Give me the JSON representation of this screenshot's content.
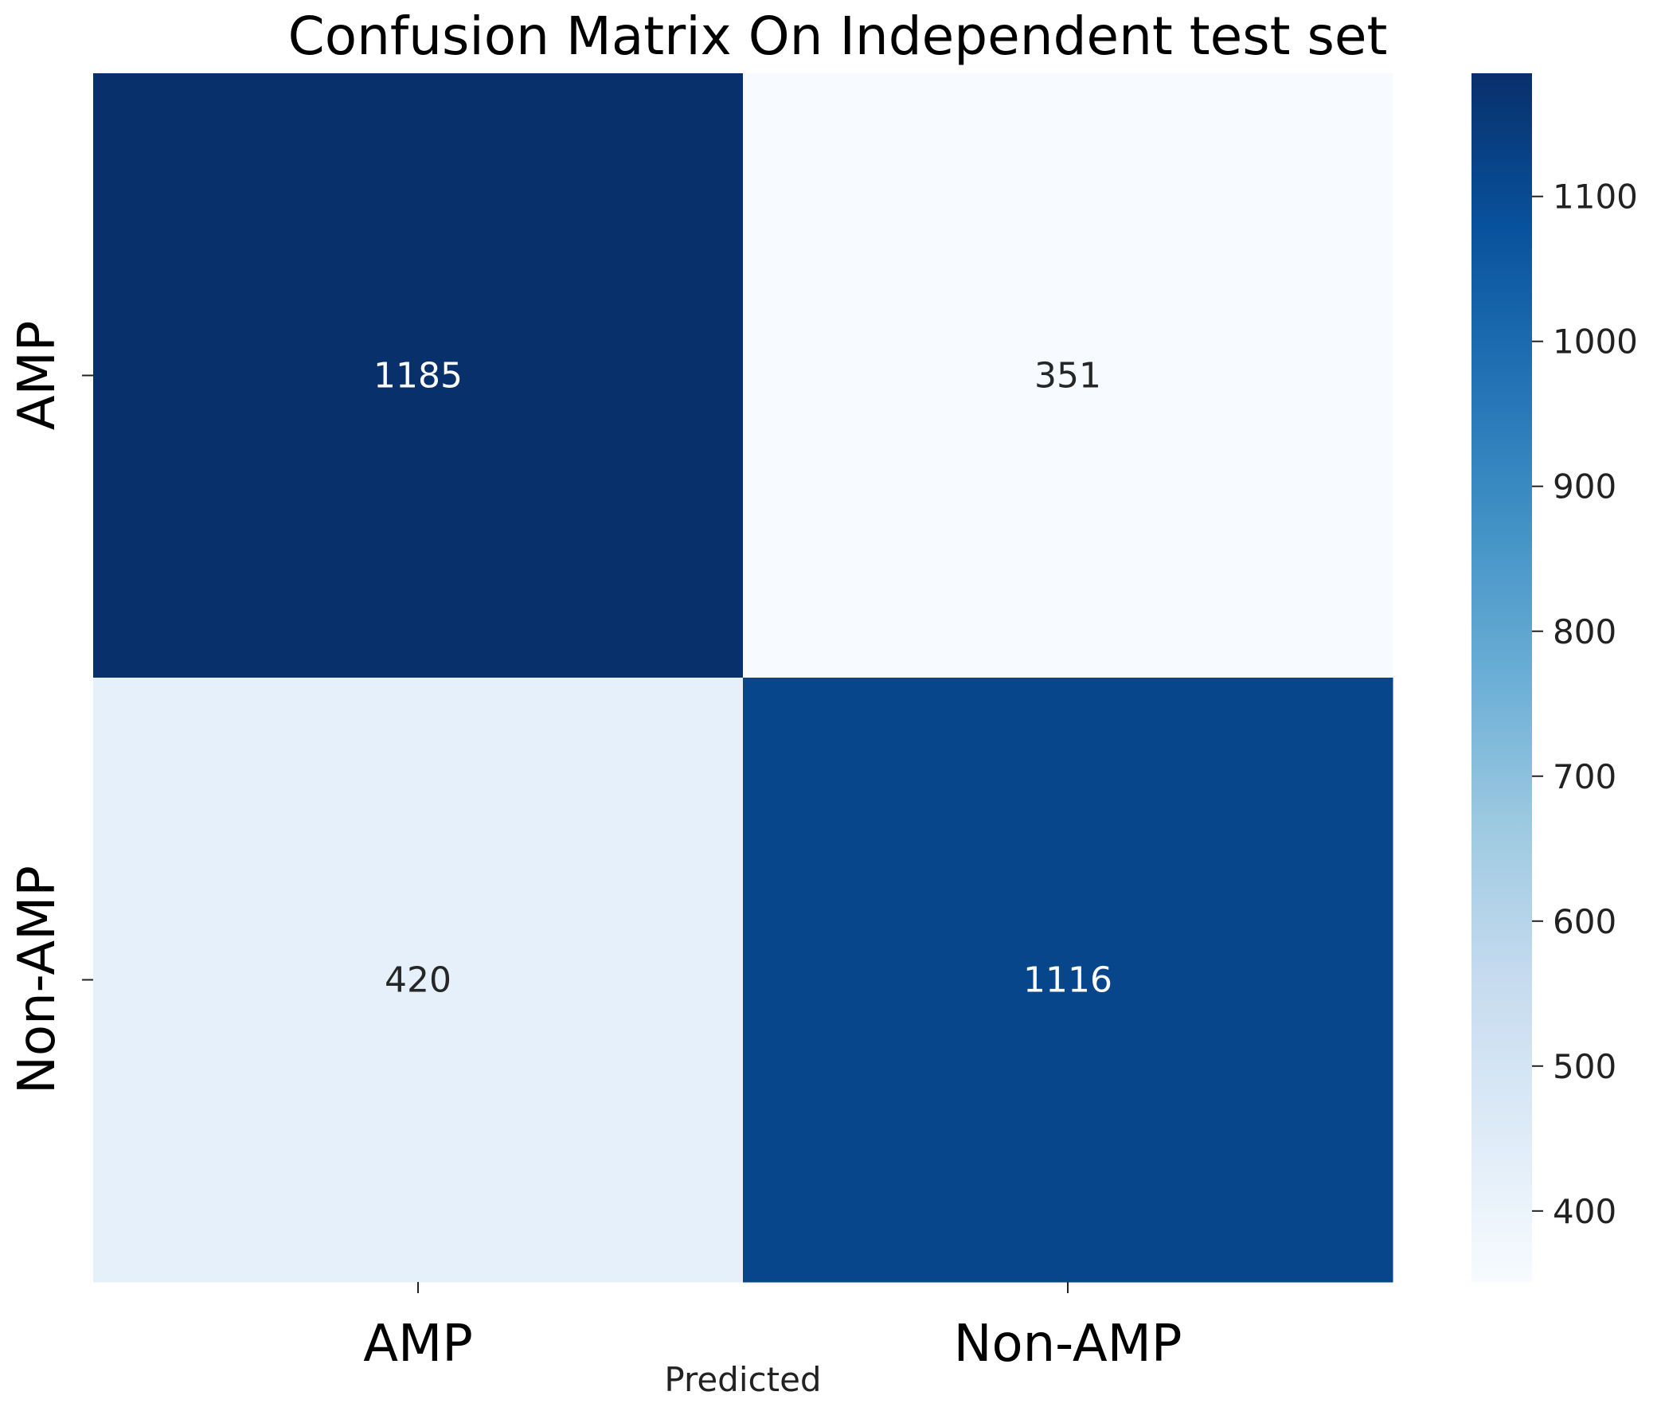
{
  "chart_data": {
    "type": "heatmap",
    "title": "Confusion Matrix On Independent test set",
    "xlabel": "Predicted",
    "ylabel": "",
    "x_categories": [
      "AMP",
      "Non-AMP"
    ],
    "y_categories": [
      "AMP",
      "Non-AMP"
    ],
    "matrix": [
      [
        1185,
        351
      ],
      [
        420,
        1116
      ]
    ],
    "colormap": "Blues",
    "colorbar": {
      "ticks": [
        400,
        500,
        600,
        700,
        800,
        900,
        1000,
        1100
      ],
      "vmin": 351,
      "vmax": 1185
    }
  },
  "colors": {
    "blues_stops": [
      "#f7fbff",
      "#deebf7",
      "#c6dbef",
      "#9ecae1",
      "#6baed6",
      "#4292c6",
      "#2171b5",
      "#08519c",
      "#08306b"
    ],
    "text_light": "#ffffff",
    "text_dark": "#262626"
  }
}
